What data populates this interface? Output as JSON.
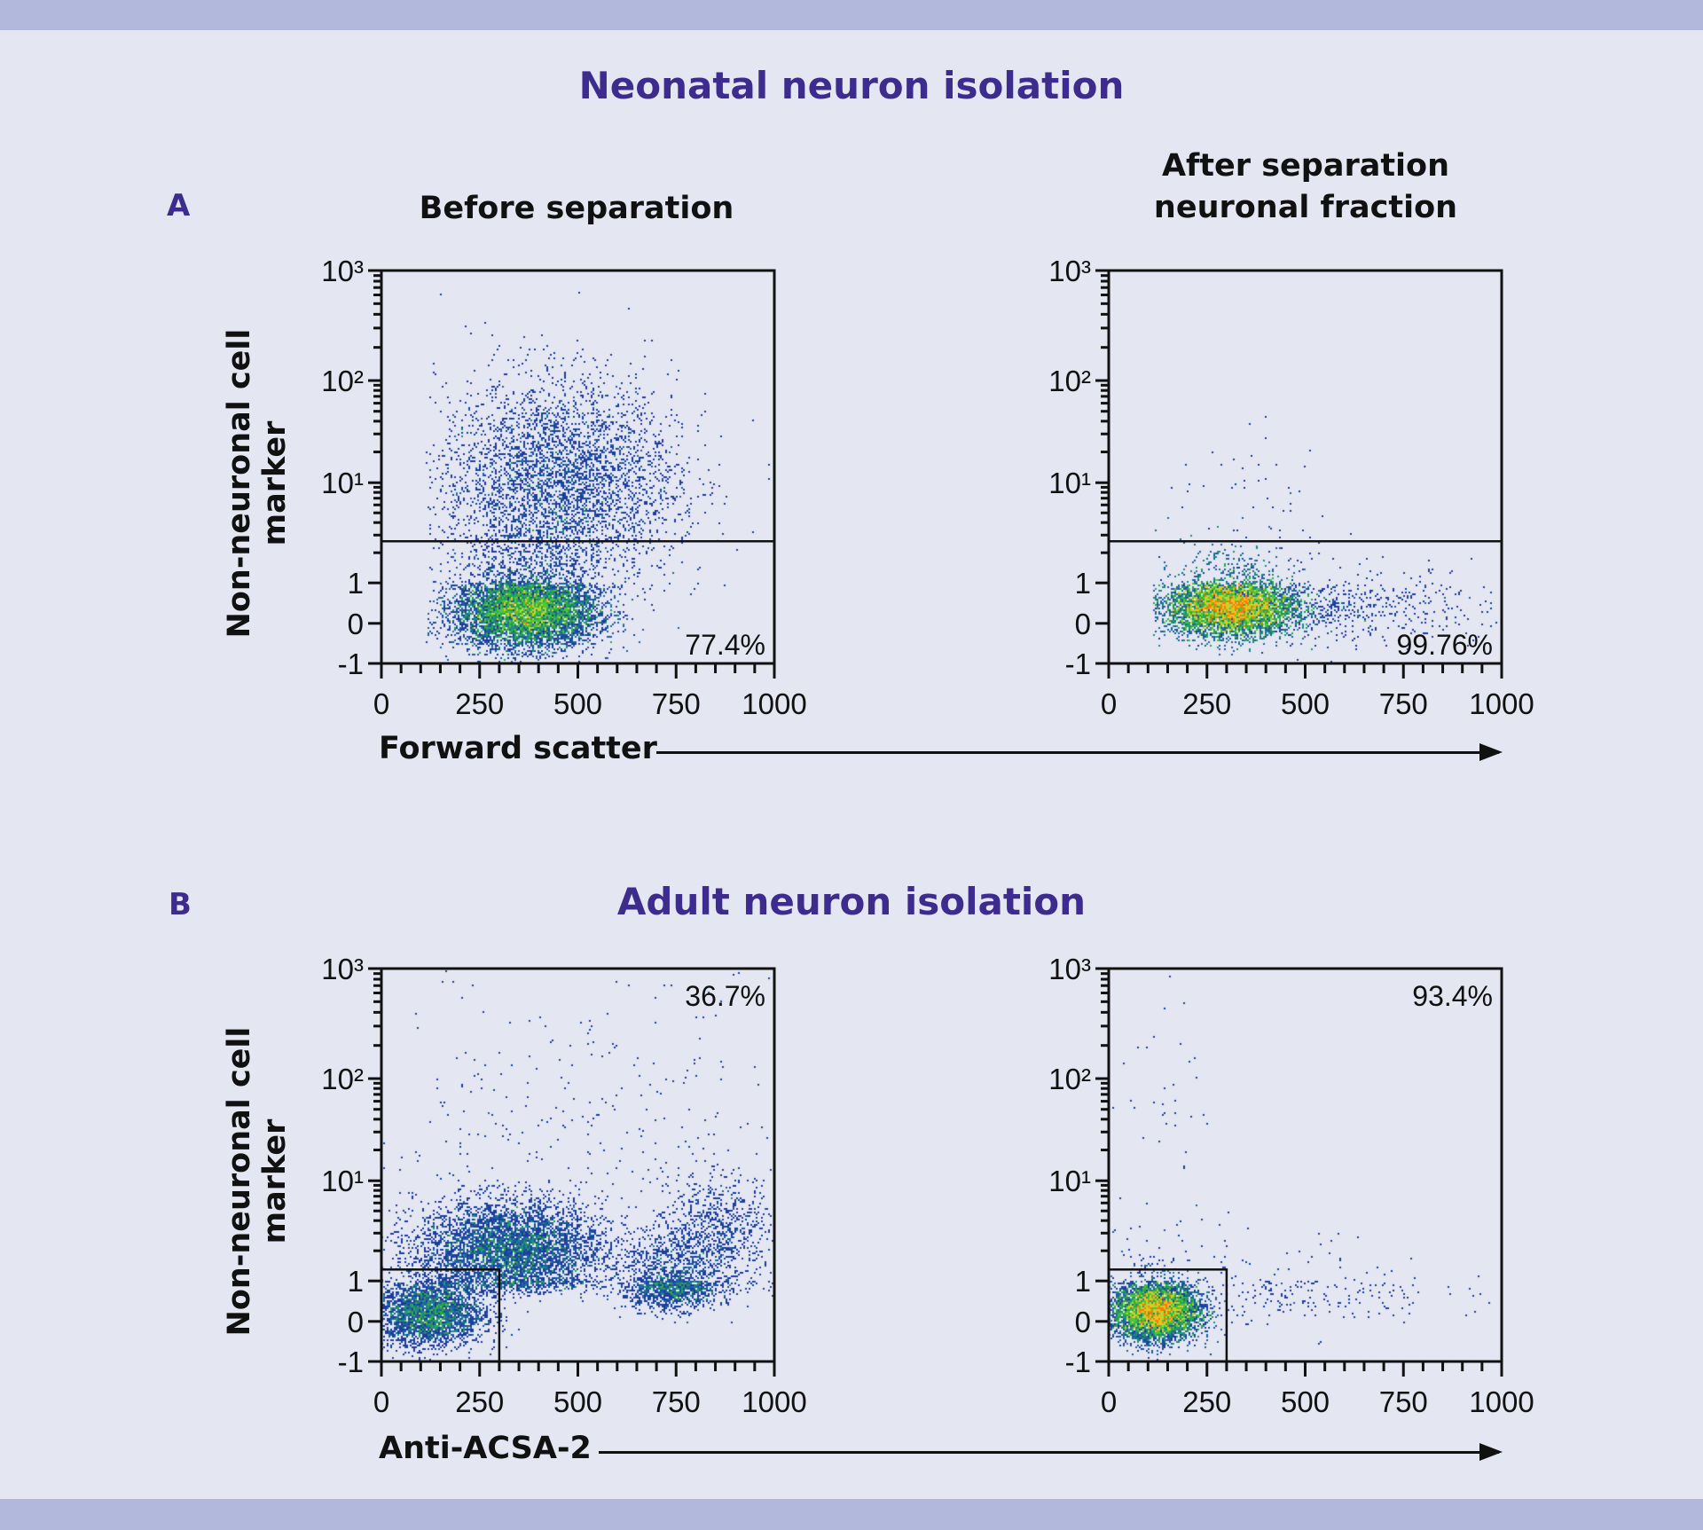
{
  "colors": {
    "accent": "#3d2b8e",
    "band": "#b1b8db",
    "background": "#e4e6f1",
    "density_low": "#1b3c9c",
    "density_mid": "#3cc43c",
    "density_high": "#ff7a00"
  },
  "section_a": {
    "letter": "A",
    "title": "Neonatal neuron isolation",
    "xlabel": "Forward scatter",
    "ylabel": "Non-neuronal cell marker"
  },
  "section_b": {
    "letter": "B",
    "title": "Adult neuron isolation",
    "xlabel": "Anti-ACSA-2",
    "ylabel": "Non-neuronal cell marker"
  },
  "chart_data": [
    {
      "type": "scatter",
      "panel": "A-left",
      "title_lines": [
        "Before separation"
      ],
      "xlabel": "Forward scatter",
      "ylabel": "Non-neuronal cell marker",
      "xlim": [
        0,
        1000
      ],
      "ylim": [
        -1,
        1000
      ],
      "y_scale": "biexponential (linear -1..1, log 1..1000)",
      "x_ticks": [
        0,
        250,
        500,
        750,
        1000
      ],
      "x_tick_labels": [
        "0",
        "250",
        "500",
        "750",
        "1000"
      ],
      "y_ticks": [
        1000,
        100,
        10,
        1,
        0,
        -1
      ],
      "y_tick_labels": [
        "10³",
        "10²",
        "10¹",
        "1",
        "0",
        "-1"
      ],
      "gate": {
        "type": "threshold",
        "y": 2.6
      },
      "gate_percent": "77.4%",
      "percent_position": "bottom-right",
      "populations": [
        {
          "x": 370,
          "x_sd": 90,
          "y": 0.3,
          "y_sd_decades": 0.45,
          "n": 9000
        },
        {
          "x": 450,
          "x_sd": 150,
          "y": 10,
          "y_sd_decades": 0.5,
          "n": 4000
        }
      ],
      "x_min_event": 115
    },
    {
      "type": "scatter",
      "panel": "A-right",
      "title_lines": [
        "After separation",
        "neuronal fraction"
      ],
      "xlabel": "Forward scatter",
      "ylabel": "Non-neuronal cell marker",
      "xlim": [
        0,
        1000
      ],
      "ylim": [
        -1,
        1000
      ],
      "y_scale": "biexponential (linear -1..1, log 1..1000)",
      "x_ticks": [
        0,
        250,
        500,
        750,
        1000
      ],
      "x_tick_labels": [
        "0",
        "250",
        "500",
        "750",
        "1000"
      ],
      "y_ticks": [
        1000,
        100,
        10,
        1,
        0,
        -1
      ],
      "y_tick_labels": [
        "10³",
        "10²",
        "10¹",
        "1",
        "0",
        "-1"
      ],
      "gate": {
        "type": "threshold",
        "y": 2.6
      },
      "gate_percent": "99.76%",
      "percent_position": "bottom-right",
      "populations": [
        {
          "x": 310,
          "x_sd": 80,
          "y": 0.4,
          "y_sd_decades": 0.35,
          "n": 12000
        },
        {
          "x": 550,
          "x_sd": 200,
          "y": 0.4,
          "y_sd_decades": 0.4,
          "n": 700
        },
        {
          "x": 350,
          "x_sd": 150,
          "y": 8,
          "y_sd_decades": 0.3,
          "n": 40
        }
      ],
      "x_min_event": 115
    },
    {
      "type": "scatter",
      "panel": "B-left",
      "title_lines": [],
      "xlabel": "Anti-ACSA-2",
      "ylabel": "Non-neuronal cell marker",
      "xlim": [
        0,
        1000
      ],
      "ylim": [
        -1,
        1000
      ],
      "y_scale": "biexponential (linear -1..1, log 1..1000)",
      "x_ticks": [
        0,
        250,
        500,
        750,
        1000
      ],
      "x_tick_labels": [
        "0",
        "250",
        "500",
        "750",
        "1000"
      ],
      "y_ticks": [
        1000,
        100,
        10,
        1,
        0,
        -1
      ],
      "y_tick_labels": [
        "10³",
        "10²",
        "10¹",
        "1",
        "0",
        "-1"
      ],
      "gate": {
        "type": "rectangle",
        "x": [
          0,
          300
        ],
        "y": [
          -1,
          1.3
        ]
      },
      "gate_percent": "36.7%",
      "percent_position": "top-right",
      "populations": [
        {
          "x": 120,
          "x_sd": 70,
          "y": 0.2,
          "y_sd_decades": 0.4,
          "n": 3000
        },
        {
          "x": 330,
          "x_sd": 120,
          "y": 2,
          "y_sd_decades": 0.25,
          "n": 5000
        },
        {
          "x": 740,
          "x_sd": 60,
          "y": 0.9,
          "y_sd_decades": 0.3,
          "n": 1500
        },
        {
          "x": 860,
          "x_sd": 70,
          "y": 3,
          "y_sd_decades": 0.3,
          "n": 800
        },
        {
          "x": 500,
          "x_sd": 300,
          "y": 30,
          "y_sd_decades": 0.8,
          "n": 300
        }
      ],
      "x_min_event": 0
    },
    {
      "type": "scatter",
      "panel": "B-right",
      "title_lines": [],
      "xlabel": "Anti-ACSA-2",
      "ylabel": "Non-neuronal cell marker",
      "xlim": [
        0,
        1000
      ],
      "ylim": [
        -1,
        1000
      ],
      "y_scale": "biexponential (linear -1..1, log 1..1000)",
      "x_ticks": [
        0,
        250,
        500,
        750,
        1000
      ],
      "x_tick_labels": [
        "0",
        "250",
        "500",
        "750",
        "1000"
      ],
      "y_ticks": [
        1000,
        100,
        10,
        1,
        0,
        -1
      ],
      "y_tick_labels": [
        "10³",
        "10²",
        "10¹",
        "1",
        "0",
        "-1"
      ],
      "gate": {
        "type": "rectangle",
        "x": [
          0,
          300
        ],
        "y": [
          -1,
          1.3
        ]
      },
      "gate_percent": "93.4%",
      "percent_position": "top-right",
      "populations": [
        {
          "x": 120,
          "x_sd": 55,
          "y": 0.25,
          "y_sd_decades": 0.35,
          "n": 8000
        },
        {
          "x": 400,
          "x_sd": 220,
          "y": 0.7,
          "y_sd_decades": 0.4,
          "n": 300
        },
        {
          "x": 150,
          "x_sd": 80,
          "y": 30,
          "y_sd_decades": 0.7,
          "n": 50
        }
      ],
      "x_min_event": 0
    }
  ]
}
